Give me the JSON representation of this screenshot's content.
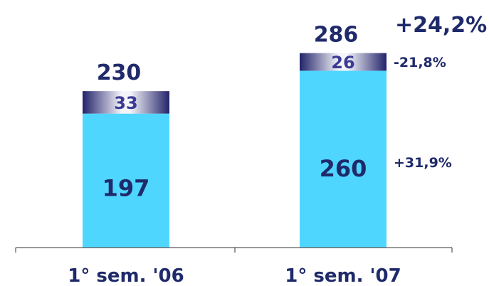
{
  "chart_data": {
    "type": "bar",
    "stacked": true,
    "categories": [
      "1° sem. '06",
      "1° sem. '07"
    ],
    "series": [
      {
        "values": [
          197,
          260
        ],
        "color": "#4fd6ff"
      },
      {
        "values": [
          33,
          26
        ],
        "color": "#2e2e78"
      }
    ],
    "totals": [
      230,
      286
    ],
    "annotations": {
      "total_change": "+24,2%",
      "segment_changes": [
        "+31,9%",
        "-21,8%"
      ]
    },
    "ylim": [
      0,
      300
    ],
    "grid": false,
    "legend": "none"
  }
}
